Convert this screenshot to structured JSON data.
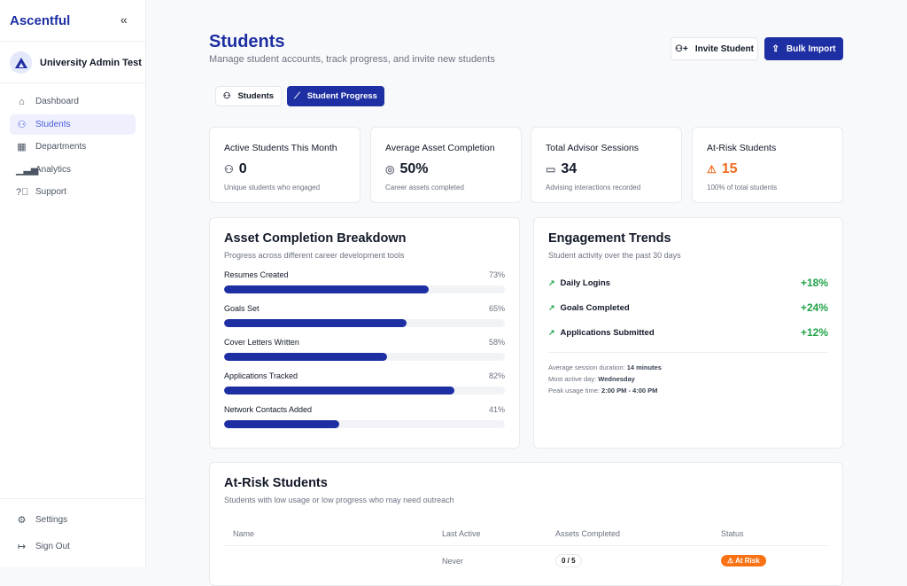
{
  "sidebar": {
    "logo": "Ascentful",
    "collapse": "«",
    "org": "University Admin Test",
    "items": [
      {
        "label": "Dashboard",
        "icon": "building-icon"
      },
      {
        "label": "Students",
        "icon": "user-icon"
      },
      {
        "label": "Departments",
        "icon": "office-icon"
      },
      {
        "label": "Analytics",
        "icon": "bar-chart-icon"
      },
      {
        "label": "Support",
        "icon": "help-circle-icon"
      }
    ],
    "settings": "Settings",
    "signout": "Sign Out"
  },
  "header": {
    "title": "Students",
    "subtitle": "Manage student accounts, track progress, and invite new students",
    "invite": "Invite Student",
    "bulk": "Bulk Import"
  },
  "tabs": [
    {
      "label": "Students",
      "active": false
    },
    {
      "label": "Student Progress",
      "active": true
    }
  ],
  "stats": [
    {
      "title": "Active Students This Month",
      "value": "0",
      "desc": "Unique students who engaged",
      "icon": "users-icon"
    },
    {
      "title": "Average Asset Completion",
      "value": "50%",
      "desc": "Career assets completed",
      "icon": "target-icon"
    },
    {
      "title": "Total Advisor Sessions",
      "value": "34",
      "desc": "Advising interactions recorded",
      "icon": "calendar-icon"
    },
    {
      "title": "At-Risk Students",
      "value": "15",
      "desc": "100% of total students",
      "icon": "warning-icon",
      "color": "#f26b1d"
    }
  ],
  "breakdown": {
    "title": "Asset Completion Breakdown",
    "subtitle": "Progress across different career development tools",
    "items": [
      {
        "label": "Resumes Created",
        "value": 73,
        "text": "73%"
      },
      {
        "label": "Goals Set",
        "value": 65,
        "text": "65%"
      },
      {
        "label": "Cover Letters Written",
        "value": 58,
        "text": "58%"
      },
      {
        "label": "Applications Tracked",
        "value": 82,
        "text": "82%"
      },
      {
        "label": "Network Contacts Added",
        "value": 41,
        "text": "41%"
      }
    ]
  },
  "trends": {
    "title": "Engagement Trends",
    "subtitle": "Student activity over the past 30 days",
    "items": [
      {
        "label": "Daily Logins",
        "value": "+18%"
      },
      {
        "label": "Goals Completed",
        "value": "+24%"
      },
      {
        "label": "Applications Submitted",
        "value": "+12%"
      }
    ],
    "meta": [
      {
        "label": "Average session duration:",
        "value": "14 minutes"
      },
      {
        "label": "Most active day:",
        "value": "Wednesday"
      },
      {
        "label": "Peak usage time:",
        "value": "2:00 PM - 4:00 PM"
      }
    ]
  },
  "atrisk": {
    "title": "At-Risk Students",
    "subtitle": "Students with low usage or low progress who may need outreach",
    "columns": [
      "Name",
      "Last Active",
      "Assets Completed",
      "Status"
    ],
    "rows": [
      {
        "name": "",
        "last": "Never",
        "assets": "0 / 5",
        "status": "At Risk"
      }
    ]
  },
  "colors": {
    "brand": "#1e2fa3",
    "positive": "#22a34a",
    "warning": "#f97316"
  }
}
